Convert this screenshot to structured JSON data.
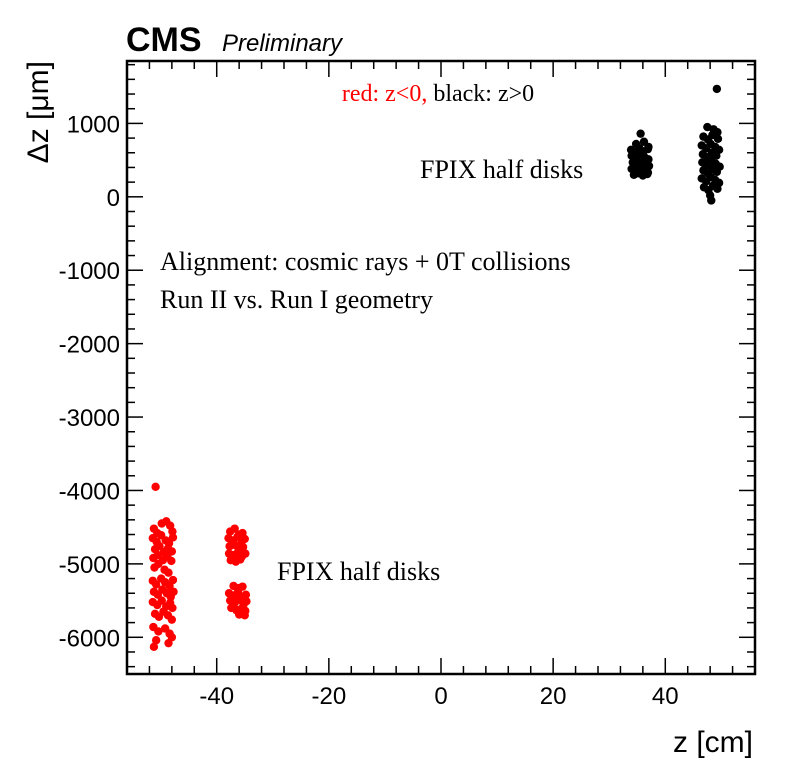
{
  "header": {
    "experiment": "CMS",
    "status": "Preliminary"
  },
  "chart_data": {
    "type": "scatter",
    "title": "",
    "xlabel": "z [cm]",
    "ylabel": "Δz [μm]",
    "xlim": [
      -56,
      56
    ],
    "ylim": [
      -6500,
      1850
    ],
    "x_ticks": [
      -40,
      -20,
      0,
      20,
      40
    ],
    "x_tick_labels": [
      "-40",
      "-20",
      "0",
      "20",
      "40"
    ],
    "y_ticks": [
      -6000,
      -5000,
      -4000,
      -3000,
      -2000,
      -1000,
      0,
      1000
    ],
    "y_tick_labels": [
      "-6000",
      "-5000",
      "-4000",
      "-3000",
      "-2000",
      "-1000",
      "0",
      "1000"
    ],
    "grid": false,
    "legend": {
      "red_part": "red: z<0,",
      "black_part": "black: z>0"
    },
    "annotations": {
      "alignment_line1": "Alignment: cosmic rays + 0T collisions",
      "alignment_line2": "Run II vs. Run I geometry",
      "label_positive": "FPIX half disks",
      "label_negative": "FPIX half disks"
    },
    "series": [
      {
        "color": "#ff0000",
        "points": [
          [
            -50.9,
            -3950
          ],
          [
            -51.2,
            -4520
          ],
          [
            -50.6,
            -4580
          ],
          [
            -49.8,
            -4450
          ],
          [
            -49.0,
            -4420
          ],
          [
            -48.3,
            -4480
          ],
          [
            -47.9,
            -4560
          ],
          [
            -51.4,
            -4650
          ],
          [
            -50.7,
            -4700
          ],
          [
            -49.9,
            -4610
          ],
          [
            -49.1,
            -4680
          ],
          [
            -48.5,
            -4720
          ],
          [
            -47.8,
            -4640
          ],
          [
            -51.0,
            -4800
          ],
          [
            -50.2,
            -4760
          ],
          [
            -49.4,
            -4840
          ],
          [
            -48.7,
            -4790
          ],
          [
            -48.0,
            -4830
          ],
          [
            -51.3,
            -4920
          ],
          [
            -50.5,
            -4880
          ],
          [
            -49.6,
            -4950
          ],
          [
            -48.8,
            -4900
          ],
          [
            -48.1,
            -4960
          ],
          [
            -51.1,
            -5050
          ],
          [
            -50.4,
            -5000
          ],
          [
            -49.3,
            -5080
          ],
          [
            -48.6,
            -5120
          ],
          [
            -51.4,
            -5230
          ],
          [
            -50.8,
            -5280
          ],
          [
            -49.9,
            -5200
          ],
          [
            -49.2,
            -5250
          ],
          [
            -48.4,
            -5300
          ],
          [
            -47.8,
            -5220
          ],
          [
            -51.2,
            -5380
          ],
          [
            -50.5,
            -5420
          ],
          [
            -49.7,
            -5350
          ],
          [
            -48.9,
            -5400
          ],
          [
            -48.2,
            -5450
          ],
          [
            -47.7,
            -5380
          ],
          [
            -51.4,
            -5520
          ],
          [
            -50.6,
            -5560
          ],
          [
            -49.8,
            -5500
          ],
          [
            -49.0,
            -5580
          ],
          [
            -48.3,
            -5530
          ],
          [
            -47.9,
            -5600
          ],
          [
            -51.0,
            -5680
          ],
          [
            -50.3,
            -5720
          ],
          [
            -49.5,
            -5650
          ],
          [
            -48.7,
            -5700
          ],
          [
            -48.0,
            -5760
          ],
          [
            -51.3,
            -5860
          ],
          [
            -50.4,
            -5920
          ],
          [
            -49.2,
            -5880
          ],
          [
            -48.4,
            -5950
          ],
          [
            -50.8,
            -6040
          ],
          [
            -48.0,
            -6000
          ],
          [
            -51.2,
            -6130
          ],
          [
            -48.6,
            -6080
          ],
          [
            -37.6,
            -4560
          ],
          [
            -36.8,
            -4520
          ],
          [
            -36.0,
            -4600
          ],
          [
            -35.4,
            -4580
          ],
          [
            -37.9,
            -4650
          ],
          [
            -37.1,
            -4680
          ],
          [
            -36.3,
            -4630
          ],
          [
            -35.6,
            -4700
          ],
          [
            -35.0,
            -4660
          ],
          [
            -37.7,
            -4760
          ],
          [
            -36.9,
            -4740
          ],
          [
            -36.1,
            -4790
          ],
          [
            -35.3,
            -4770
          ],
          [
            -37.8,
            -4860
          ],
          [
            -37.0,
            -4880
          ],
          [
            -36.2,
            -4840
          ],
          [
            -35.5,
            -4900
          ],
          [
            -34.9,
            -4860
          ],
          [
            -37.5,
            -4950
          ],
          [
            -36.6,
            -4970
          ],
          [
            -35.8,
            -4940
          ],
          [
            -37.0,
            -5300
          ],
          [
            -36.2,
            -5330
          ],
          [
            -35.4,
            -5310
          ],
          [
            -37.8,
            -5400
          ],
          [
            -37.0,
            -5430
          ],
          [
            -36.2,
            -5380
          ],
          [
            -35.5,
            -5450
          ],
          [
            -34.8,
            -5420
          ],
          [
            -37.6,
            -5500
          ],
          [
            -36.8,
            -5530
          ],
          [
            -36.0,
            -5490
          ],
          [
            -35.2,
            -5550
          ],
          [
            -34.7,
            -5510
          ],
          [
            -37.4,
            -5600
          ],
          [
            -36.5,
            -5630
          ],
          [
            -35.6,
            -5610
          ],
          [
            -34.9,
            -5640
          ],
          [
            -36.0,
            -5690
          ],
          [
            -35.0,
            -5700
          ]
        ]
      },
      {
        "color": "#000000",
        "points": [
          [
            35.6,
            860
          ],
          [
            34.8,
            720
          ],
          [
            36.2,
            750
          ],
          [
            37.0,
            680
          ],
          [
            33.9,
            640
          ],
          [
            34.6,
            610
          ],
          [
            35.4,
            660
          ],
          [
            36.1,
            620
          ],
          [
            36.9,
            650
          ],
          [
            34.0,
            560
          ],
          [
            34.8,
            520
          ],
          [
            35.5,
            580
          ],
          [
            36.3,
            540
          ],
          [
            37.0,
            510
          ],
          [
            34.2,
            470
          ],
          [
            34.9,
            440
          ],
          [
            35.7,
            490
          ],
          [
            36.5,
            450
          ],
          [
            37.1,
            420
          ],
          [
            34.0,
            380
          ],
          [
            34.7,
            350
          ],
          [
            35.5,
            400
          ],
          [
            36.2,
            360
          ],
          [
            36.9,
            330
          ],
          [
            34.4,
            300
          ],
          [
            35.2,
            320
          ],
          [
            36.0,
            290
          ],
          [
            36.8,
            310
          ],
          [
            49.2,
            1470
          ],
          [
            47.5,
            950
          ],
          [
            48.6,
            920
          ],
          [
            49.3,
            880
          ],
          [
            46.8,
            820
          ],
          [
            47.6,
            780
          ],
          [
            48.4,
            840
          ],
          [
            49.4,
            790
          ],
          [
            46.5,
            700
          ],
          [
            47.3,
            660
          ],
          [
            48.1,
            720
          ],
          [
            48.9,
            680
          ],
          [
            49.6,
            640
          ],
          [
            46.7,
            580
          ],
          [
            47.5,
            540
          ],
          [
            48.3,
            600
          ],
          [
            49.1,
            560
          ],
          [
            46.6,
            470
          ],
          [
            47.4,
            430
          ],
          [
            48.2,
            490
          ],
          [
            49.0,
            450
          ],
          [
            49.7,
            410
          ],
          [
            46.8,
            360
          ],
          [
            47.6,
            320
          ],
          [
            48.4,
            380
          ],
          [
            49.2,
            340
          ],
          [
            46.5,
            250
          ],
          [
            47.3,
            210
          ],
          [
            48.1,
            270
          ],
          [
            48.9,
            230
          ],
          [
            49.6,
            190
          ],
          [
            46.9,
            130
          ],
          [
            47.7,
            90
          ],
          [
            48.5,
            150
          ],
          [
            49.3,
            110
          ],
          [
            48.0,
            20
          ],
          [
            48.2,
            -50
          ]
        ]
      }
    ]
  }
}
